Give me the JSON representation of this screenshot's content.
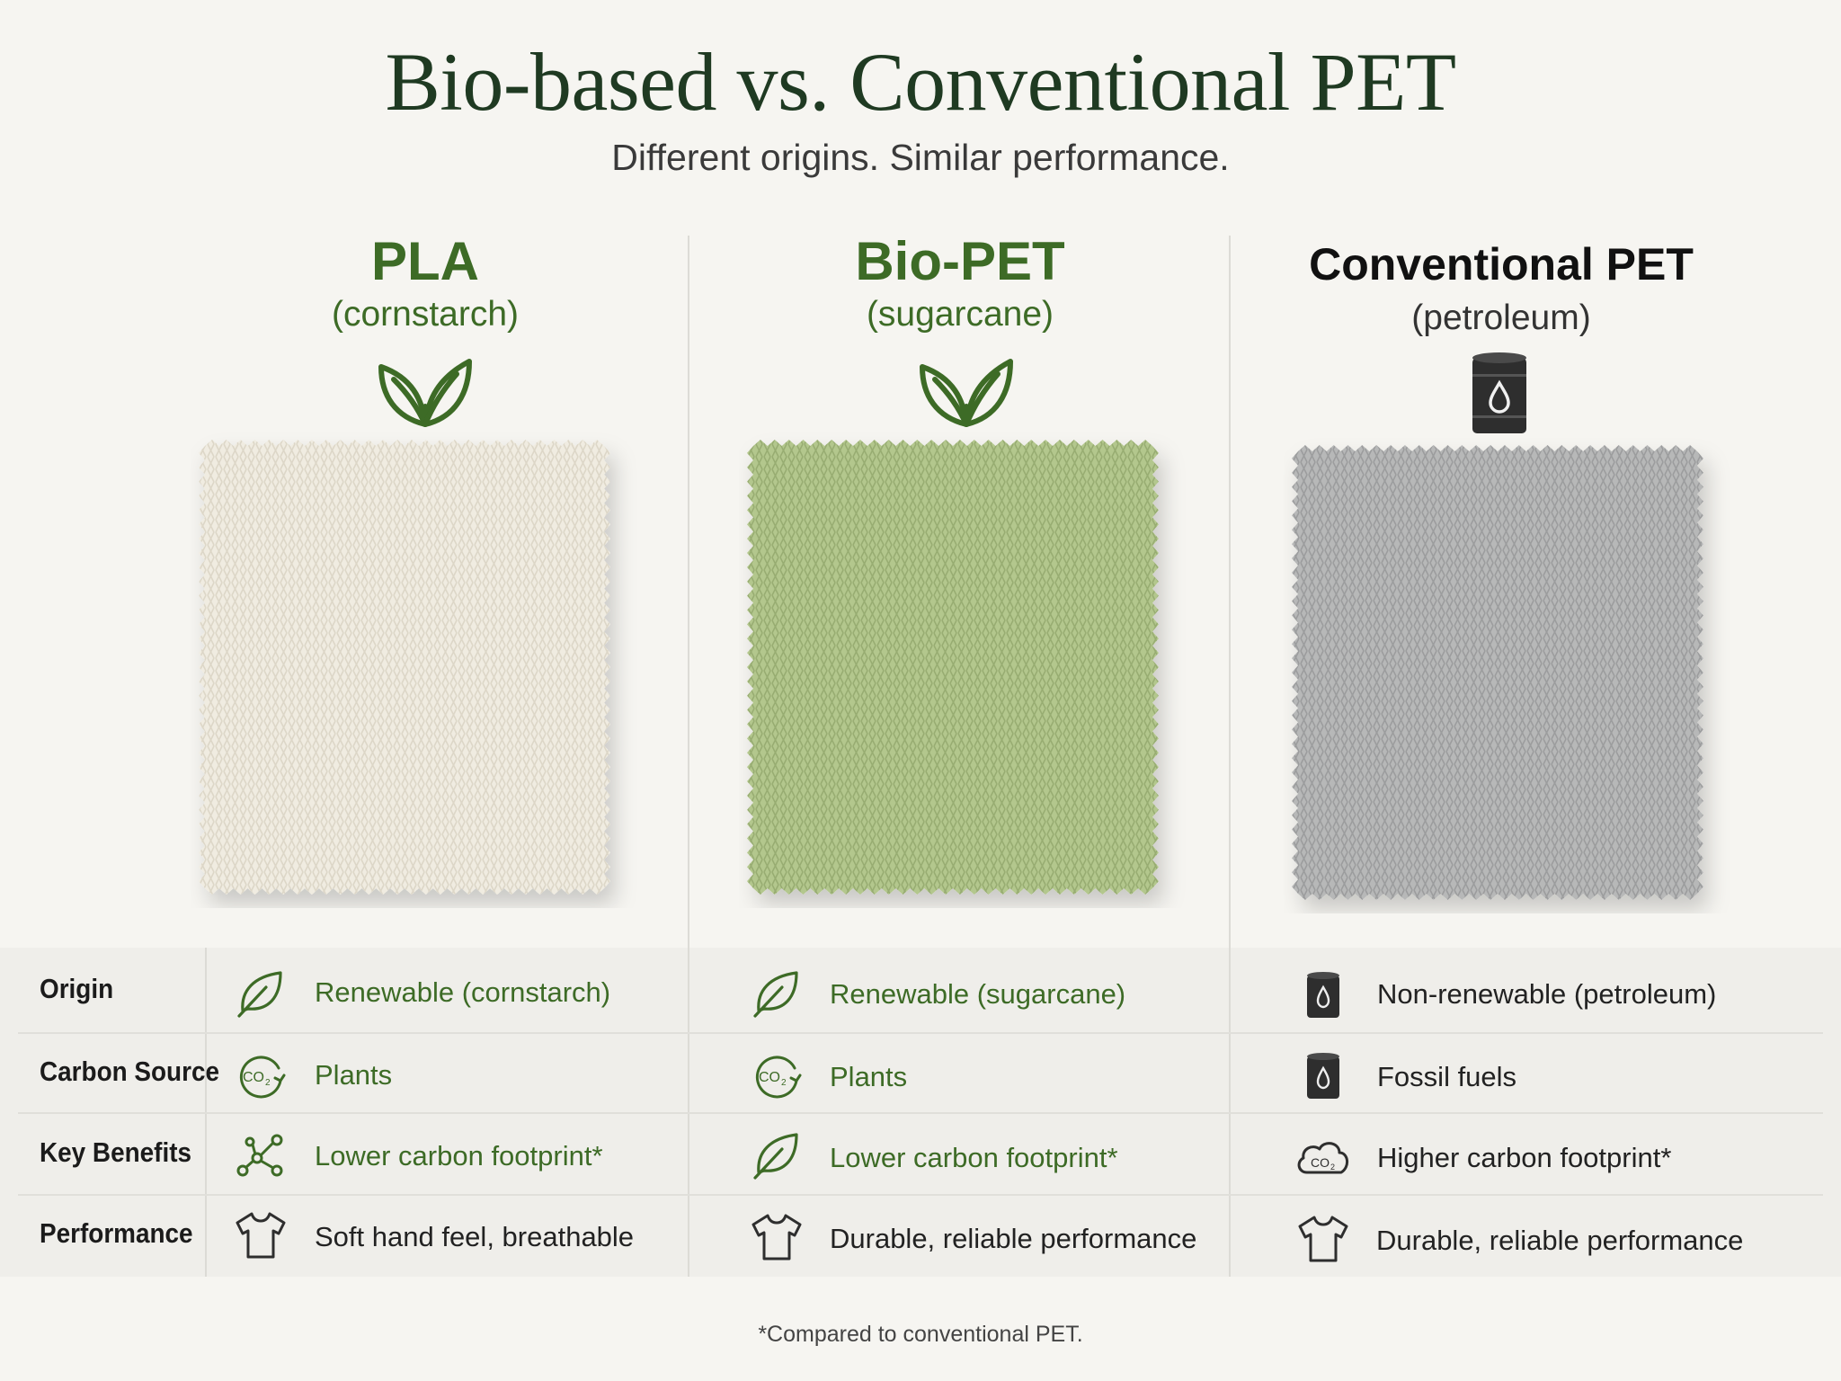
{
  "header": {
    "title": "Bio-based vs. Conventional PET",
    "subtitle": "Different origins. Similar performance."
  },
  "columns": [
    {
      "name": "PLA",
      "origin": "(cornstarch)",
      "icon": "leaf-sprout-icon",
      "swatch_color": "#f0ece1"
    },
    {
      "name": "Bio-PET",
      "origin": "(sugarcane)",
      "icon": "leaf-sprout-icon",
      "swatch_color": "#b3c78d"
    },
    {
      "name": "Conventional PET",
      "origin": "(petroleum)",
      "icon": "oil-barrel-icon",
      "swatch_color": "#b7b8b8"
    }
  ],
  "rows": [
    {
      "label": "Origin",
      "cells": [
        {
          "text": "Renewable (cornstarch)",
          "icon": "leaf-icon"
        },
        {
          "text": "Renewable (sugarcane)",
          "icon": "leaf-icon"
        },
        {
          "text": "Non-renewable (petroleum)",
          "icon": "oil-barrel-icon"
        }
      ]
    },
    {
      "label": "Carbon Source",
      "cells": [
        {
          "text": "Plants",
          "icon": "co2-cycle-icon"
        },
        {
          "text": "Plants",
          "icon": "co2-cycle-icon"
        },
        {
          "text": "Fossil fuels",
          "icon": "oil-barrel-icon"
        }
      ]
    },
    {
      "label": "Key Benefits",
      "cells": [
        {
          "text": "Lower carbon footprint*",
          "icon": "molecule-icon"
        },
        {
          "text": "Lower carbon footprint*",
          "icon": "leaf-icon"
        },
        {
          "text": "Higher carbon footprint*",
          "icon": "co2-cloud-icon"
        }
      ]
    },
    {
      "label": "Performance",
      "cells": [
        {
          "text": "Soft hand feel, breathable",
          "icon": "tshirt-icon"
        },
        {
          "text": "Durable, reliable performance",
          "icon": "tshirt-icon"
        },
        {
          "text": "Durable, reliable performance",
          "icon": "tshirt-icon"
        }
      ]
    }
  ],
  "footnote": "*Compared to conventional PET.",
  "colors": {
    "accent_green": "#3d6b26",
    "title_green": "#1f3a22",
    "background": "#f6f5f1"
  }
}
